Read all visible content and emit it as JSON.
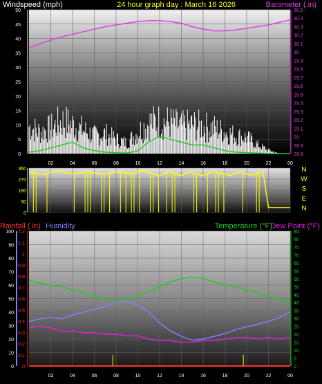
{
  "header": {
    "left": "Windspeed (mph)",
    "center": "24 hour graph day : March 16 2026",
    "right": "Barometer (.in)"
  },
  "bottom_header": {
    "rain": "Rainfall (.in)",
    "humidity": "Humidity",
    "temperature": "Temperature (°F)",
    "dewpoint": "Dew Point (°F)"
  },
  "colors": {
    "windspeed": "#ffffff",
    "gust": "#c8c8c8",
    "windavg": "#22cc22",
    "barometer": "#e040e0",
    "direction": "#ffff00",
    "temperature": "#22cc22",
    "dewpoint": "#e020e0",
    "humidity": "#8080ff",
    "rain": "#ff3030",
    "rainrate": "#c8a800",
    "title": "#ffff00"
  },
  "x_ticks": [
    "02",
    "04",
    "06",
    "08",
    "10",
    "12",
    "14",
    "16",
    "18",
    "20",
    "22",
    "00"
  ],
  "chart_data": [
    {
      "type": "line",
      "name": "wind-barometer",
      "x_ticks": [
        "02",
        "04",
        "06",
        "08",
        "10",
        "12",
        "14",
        "16",
        "18",
        "20",
        "22",
        "00"
      ],
      "y_left": {
        "label": "Windspeed (mph)",
        "ticks": [
          0,
          5,
          10,
          15,
          20,
          25,
          30,
          35,
          40,
          45,
          50
        ],
        "ylim": [
          0,
          50
        ]
      },
      "y_right": {
        "label": "Barometer (.in)",
        "ticks": [
          "28.8",
          "28.9",
          "29",
          "29.1",
          "29.2",
          "29.3",
          "29.4",
          "29.5",
          "29.6",
          "29.7",
          "29.8",
          "29.9",
          "30",
          "30.1",
          "30.2",
          "30.3",
          "30.4",
          "30.5"
        ],
        "ylim": [
          28.8,
          30.5
        ]
      },
      "barometer": {
        "x": [
          0,
          1,
          2,
          3,
          4,
          5,
          6,
          7,
          8,
          9,
          10,
          11,
          12,
          13,
          14,
          15,
          16,
          17,
          18,
          19,
          20,
          21,
          22,
          23,
          24
        ],
        "y": [
          30.05,
          30.1,
          30.14,
          30.18,
          30.21,
          30.24,
          30.27,
          30.3,
          30.32,
          30.34,
          30.36,
          30.37,
          30.37,
          30.36,
          30.34,
          30.3,
          30.27,
          30.25,
          30.25,
          30.26,
          30.28,
          30.3,
          30.32,
          30.35,
          30.38
        ]
      },
      "windspeed_envelope": {
        "x": [
          0,
          1,
          2,
          3,
          4,
          5,
          6,
          7,
          8,
          9,
          10,
          11,
          12,
          13,
          14,
          15,
          16,
          17,
          18,
          19,
          20,
          21,
          22,
          23,
          24
        ],
        "y": [
          15,
          12,
          14,
          18,
          16,
          13,
          10,
          11,
          8,
          6,
          12,
          17,
          18,
          17,
          15,
          16,
          15,
          14,
          12,
          10,
          9,
          5,
          2,
          0,
          0
        ]
      },
      "wind_average": {
        "x": [
          0,
          1,
          2,
          3,
          4,
          5,
          6,
          7,
          8,
          9,
          10,
          11,
          12,
          13,
          14,
          15,
          16,
          17,
          18,
          19,
          20,
          21,
          22,
          23,
          24
        ],
        "y": [
          0.5,
          1,
          2,
          3,
          4,
          2,
          1,
          0.5,
          0.3,
          0.2,
          1,
          4,
          6,
          5,
          4,
          3,
          3,
          2,
          1,
          0.5,
          0.3,
          0.2,
          0,
          0,
          0
        ]
      }
    },
    {
      "type": "line",
      "name": "wind-direction",
      "y_left": {
        "ticks": [
          0,
          90,
          180,
          270,
          360
        ],
        "ylim": [
          0,
          360
        ]
      },
      "y_right": {
        "ticks": [
          "N",
          "W",
          "S",
          "E",
          "N"
        ]
      },
      "direction": {
        "x": [
          0,
          0.5,
          1,
          1.5,
          2,
          2.5,
          3,
          3.5,
          4,
          4.5,
          5,
          5.5,
          6,
          6.5,
          7,
          7.5,
          8,
          8.5,
          9,
          9.5,
          10,
          10.5,
          11,
          11.5,
          12,
          12.5,
          13,
          13.5,
          14,
          14.5,
          15,
          15.5,
          16,
          16.5,
          17,
          17.5,
          18,
          18.5,
          19,
          19.5,
          20,
          20.5,
          21,
          21.5,
          22,
          22.5,
          23,
          23.5,
          24
        ],
        "y": [
          330,
          320,
          310,
          315,
          325,
          335,
          330,
          320,
          315,
          320,
          325,
          330,
          320,
          315,
          310,
          320,
          330,
          325,
          320,
          315,
          330,
          340,
          320,
          310,
          300,
          320,
          330,
          310,
          300,
          320,
          330,
          310,
          300,
          320,
          330,
          320,
          310,
          300,
          320,
          330,
          310,
          300,
          320,
          330,
          40,
          40,
          40,
          40,
          40
        ]
      }
    },
    {
      "type": "line",
      "name": "temp-humidity-rain",
      "x_ticks": [
        "02",
        "04",
        "06",
        "08",
        "10",
        "12",
        "14",
        "16",
        "18",
        "20",
        "22",
        "00"
      ],
      "y_humidity": {
        "ticks": [
          0,
          10,
          20,
          30,
          40,
          50,
          60,
          70,
          80,
          90,
          100
        ],
        "ylim": [
          0,
          100
        ]
      },
      "y_rain": {
        "ticks": [
          "0",
          "0.1",
          "0.2",
          "0.3",
          "0.4",
          "0.5",
          "0.6",
          "0.7",
          "0.8",
          "0.9",
          "1",
          "1.1",
          "1.2"
        ],
        "ylim": [
          0,
          1.2
        ]
      },
      "y_temp": {
        "ticks": [
          0,
          5,
          10,
          15,
          20,
          25,
          30,
          35,
          40,
          45,
          50,
          55,
          60,
          65,
          70,
          75,
          80,
          85
        ],
        "ylim": [
          0,
          85
        ]
      },
      "temperature": {
        "x": [
          0,
          1,
          2,
          3,
          4,
          5,
          6,
          7,
          8,
          9,
          10,
          11,
          12,
          13,
          14,
          15,
          16,
          17,
          18,
          19,
          20,
          21,
          22,
          23,
          24
        ],
        "y": [
          54,
          52,
          51,
          50,
          48,
          46,
          44,
          42,
          41,
          42,
          44,
          47,
          50,
          53,
          55,
          56,
          55,
          53,
          51,
          50,
          48,
          46,
          44,
          42,
          40
        ]
      },
      "dewpoint": {
        "x": [
          0,
          1,
          2,
          3,
          4,
          5,
          6,
          7,
          8,
          9,
          10,
          11,
          12,
          13,
          14,
          15,
          16,
          17,
          18,
          19,
          20,
          21,
          22,
          23,
          24
        ],
        "y": [
          24,
          25,
          24,
          22,
          22,
          21,
          21,
          20,
          20,
          19,
          19,
          17,
          16,
          16,
          15,
          15,
          16,
          16,
          17,
          18,
          18,
          17,
          18,
          17,
          18
        ]
      },
      "humidity": {
        "x": [
          0,
          1,
          2,
          3,
          4,
          5,
          6,
          7,
          8,
          9,
          10,
          11,
          12,
          13,
          14,
          15,
          16,
          17,
          18,
          19,
          20,
          21,
          22,
          23,
          24
        ],
        "y": [
          33,
          35,
          36,
          35,
          38,
          40,
          42,
          44,
          47,
          48,
          45,
          40,
          32,
          26,
          22,
          19,
          20,
          22,
          24,
          27,
          29,
          31,
          33,
          36,
          40
        ]
      },
      "rainfall": {
        "x": [
          0,
          24
        ],
        "y": [
          0,
          0
        ]
      },
      "rain_rate_spikes": {
        "x": [
          7.7,
          19.7
        ],
        "y": [
          0.1,
          0.1
        ]
      }
    }
  ]
}
